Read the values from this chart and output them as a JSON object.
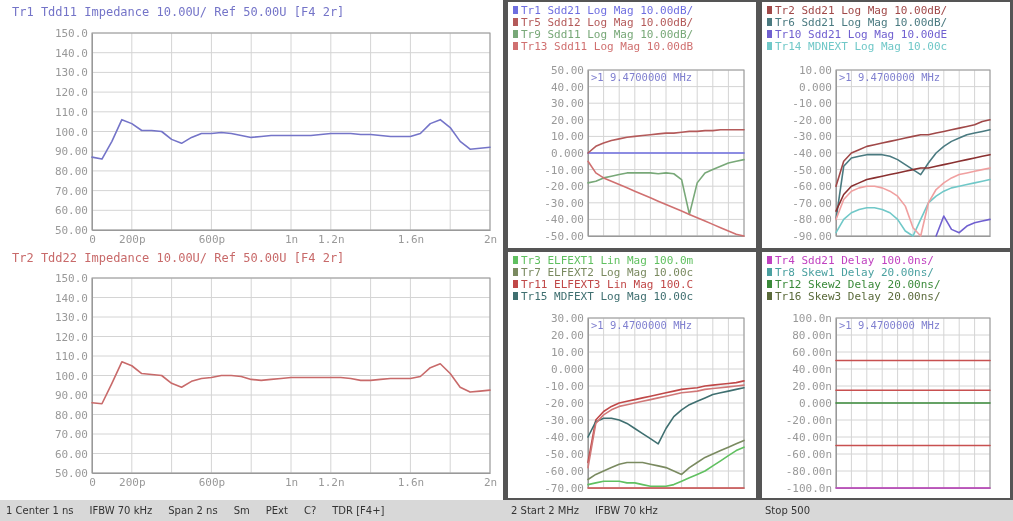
{
  "chart_data": [
    {
      "type": "line",
      "title": "Tr1 Tdd11 Impedance 10.00U/ Ref 50.00U [F4 2r]",
      "grid": true,
      "legend": false,
      "categories": [
        "0",
        null,
        null,
        null,
        "200p",
        null,
        null,
        null,
        null,
        null,
        null,
        null,
        "600p",
        null,
        null,
        null,
        null,
        null,
        null,
        null,
        "1n",
        null,
        null,
        null,
        "1.2n",
        null,
        null,
        null,
        null,
        null,
        null,
        null,
        "1.6n",
        null,
        null,
        null,
        null,
        null,
        null,
        null,
        "2n"
      ],
      "ylim": [
        50,
        150
      ],
      "yticks": [
        {
          "value": 50,
          "label": "50.00"
        },
        {
          "value": 60,
          "label": "60.00"
        },
        {
          "value": 70,
          "label": "70.00"
        },
        {
          "value": 80,
          "label": "80.00"
        },
        {
          "value": 90,
          "label": "90.00"
        },
        {
          "value": 100,
          "label": "100.0"
        },
        {
          "value": 110,
          "label": "110.0"
        },
        {
          "value": 120,
          "label": "120.0"
        },
        {
          "value": 130,
          "label": "130.0"
        },
        {
          "value": 140,
          "label": "140.0"
        },
        {
          "value": 150,
          "label": "150.0"
        }
      ],
      "series": [
        {
          "color": "#7474c8",
          "values": [
            87,
            86,
            95,
            106,
            104,
            100.5,
            100.5,
            100,
            96,
            94,
            97,
            99,
            99,
            99.5,
            99,
            98,
            97,
            97.5,
            98,
            98,
            98,
            98,
            98,
            98.5,
            99,
            99,
            99,
            98.5,
            98.5,
            98,
            97.5,
            97.5,
            97.5,
            99,
            104,
            106,
            102,
            95,
            91,
            91.5,
            92
          ]
        }
      ]
    },
    {
      "type": "line",
      "title": "Tr2 Tdd22 Impedance 10.00U/ Ref 50.00U [F4 2r]",
      "grid": true,
      "legend": false,
      "categories": [
        "0",
        null,
        null,
        null,
        "200p",
        null,
        null,
        null,
        null,
        null,
        null,
        null,
        "600p",
        null,
        null,
        null,
        null,
        null,
        null,
        null,
        "1n",
        null,
        null,
        null,
        "1.2n",
        null,
        null,
        null,
        null,
        null,
        null,
        null,
        "1.6n",
        null,
        null,
        null,
        null,
        null,
        null,
        null,
        "2n"
      ],
      "ylim": [
        50,
        150
      ],
      "yticks": [
        {
          "value": 50,
          "label": "50.00"
        },
        {
          "value": 60,
          "label": "60.00"
        },
        {
          "value": 70,
          "label": "70.00"
        },
        {
          "value": 80,
          "label": "80.00"
        },
        {
          "value": 90,
          "label": "90.00"
        },
        {
          "value": 100,
          "label": "100.0"
        },
        {
          "value": 110,
          "label": "110.0"
        },
        {
          "value": 120,
          "label": "120.0"
        },
        {
          "value": 130,
          "label": "130.0"
        },
        {
          "value": 140,
          "label": "140.0"
        },
        {
          "value": 150,
          "label": "150.0"
        }
      ],
      "annotations": [
        "1 Center 1 ns",
        "IFBW 70 kHz",
        "Span 2 ns",
        "Sm",
        "PExt",
        "C?",
        "TDR [F4+]"
      ],
      "series": [
        {
          "color": "#c86a6a",
          "values": [
            86,
            85.5,
            96,
            107,
            105,
            101,
            100.5,
            100,
            96,
            94,
            97,
            98.5,
            99,
            100,
            100,
            99.5,
            98,
            97.5,
            98,
            98.5,
            99,
            99,
            99,
            99,
            99,
            99,
            98.5,
            97.5,
            97.5,
            98,
            98.5,
            98.5,
            98.5,
            99.5,
            104,
            106,
            101,
            94,
            91.5,
            92,
            92.5
          ]
        }
      ]
    },
    {
      "type": "line",
      "grid": true,
      "legend": "top left",
      "tick_labels": "y",
      "categories": [
        null,
        null,
        null,
        null,
        null,
        null,
        null,
        null,
        null,
        null,
        null,
        null,
        null,
        null,
        null,
        null,
        null,
        null,
        null,
        null,
        null
      ],
      "ylim": [
        -50,
        50
      ],
      "yticks": [
        {
          "value": -50,
          "label": "-50.00"
        },
        {
          "value": -40,
          "label": "-40.00"
        },
        {
          "value": -30,
          "label": "-30.00"
        },
        {
          "value": -20,
          "label": "-20.00"
        },
        {
          "value": -10,
          "label": "-10.00"
        },
        {
          "value": 0,
          "label": "0.000"
        },
        {
          "value": 10,
          "label": "10.00"
        },
        {
          "value": 20,
          "label": "20.00"
        },
        {
          "value": 30,
          "label": "30.00"
        },
        {
          "value": 40,
          "label": "40.00"
        },
        {
          "value": 50,
          "label": "50.00"
        }
      ],
      "annotations": [
        ">1  9.4700000 MHz"
      ],
      "series": [
        {
          "name": "Tr1 Sdd21 Log Mag 10.00dB/",
          "color": "#6e6ee0",
          "values": [
            0,
            0,
            0,
            0,
            0,
            0,
            0,
            0,
            0,
            0,
            0,
            0,
            0,
            0,
            0,
            0,
            0,
            0,
            0,
            0,
            0
          ]
        },
        {
          "name": "Tr5 Sdd12 Log Mag 10.00dB/",
          "color": "#b45a5a",
          "values": [
            0,
            4,
            6,
            7.5,
            8.5,
            9.5,
            10,
            10.5,
            11,
            11.5,
            12,
            12,
            12.5,
            13,
            13,
            13.5,
            13.5,
            14,
            14,
            14,
            14
          ]
        },
        {
          "name": "Tr9 Sdd11 Log Mag 10.00dB/",
          "color": "#78a878",
          "values": [
            -18,
            -17,
            -15,
            -14,
            -13,
            -12,
            -12,
            -12,
            -12,
            -12.5,
            -12,
            -12.5,
            -16,
            -37,
            -18,
            -12,
            -10,
            -8,
            -6,
            -5,
            -4
          ]
        },
        {
          "name": "Tr13 Sdd11 Log Mag 10.00dB",
          "color": "#d07070",
          "values": [
            -5,
            -12,
            -15,
            -17,
            -19,
            -21,
            -23,
            -25,
            -27,
            -29,
            -31,
            -33,
            -35,
            -37,
            -39,
            -41,
            -43,
            -45,
            -47,
            -49,
            -50
          ]
        }
      ]
    },
    {
      "type": "line",
      "grid": true,
      "legend": "top left",
      "tick_labels": "y",
      "categories": [
        null,
        null,
        null,
        null,
        null,
        null,
        null,
        null,
        null,
        null,
        null,
        null,
        null,
        null,
        null,
        null,
        null,
        null,
        null,
        null,
        null
      ],
      "ylim": [
        -90,
        10
      ],
      "yticks": [
        {
          "value": -90,
          "label": "-90.00"
        },
        {
          "value": -80,
          "label": "-80.00"
        },
        {
          "value": -70,
          "label": "-70.00"
        },
        {
          "value": -60,
          "label": "-60.00"
        },
        {
          "value": -50,
          "label": "-50.00"
        },
        {
          "value": -40,
          "label": "-40.00"
        },
        {
          "value": -30,
          "label": "-30.00"
        },
        {
          "value": -20,
          "label": "-20.00"
        },
        {
          "value": -10,
          "label": "-10.00"
        },
        {
          "value": 0,
          "label": "0.000"
        },
        {
          "value": 10,
          "label": "10.00"
        }
      ],
      "annotations": [
        ">1  9.4700000 MHz"
      ],
      "series": [
        {
          "name": "Tr2 Sdd21 Log Mag 10.00dB/",
          "color": "#a04848",
          "values": [
            -60,
            -45,
            -40,
            -38,
            -36,
            -35,
            -34,
            -33,
            -32,
            -31,
            -30,
            -29,
            -29,
            -28,
            -27,
            -26,
            -25,
            -24,
            -23,
            -21,
            -20
          ]
        },
        {
          "name": "Tr6 Sdd21 Log Mag 10.00dB/",
          "color": "#4a7a80",
          "values": [
            -80,
            -48,
            -43,
            -42,
            -41,
            -41,
            -41,
            -42,
            -44,
            -47,
            -50,
            -53,
            -46,
            -40,
            -36,
            -33,
            -31,
            -29,
            -28,
            -27,
            -26
          ]
        },
        {
          "name": "Tr10 Sdd21 Log Mag 10.00dE",
          "color": "#7060d0",
          "values": [
            null,
            null,
            null,
            null,
            null,
            null,
            null,
            null,
            null,
            null,
            null,
            null,
            null,
            -90,
            -78,
            -86,
            -88,
            -84,
            -82,
            -81,
            -80
          ]
        },
        {
          "name": "Tr14 MDNEXT Log Mag 10.00c",
          "color": "#70c8c8",
          "values": [
            -88,
            -80,
            -76,
            -74,
            -73,
            -73,
            -74,
            -76,
            -80,
            -87,
            -90,
            -80,
            -70,
            -66,
            -63,
            -61,
            -60,
            -59,
            -58,
            -57,
            -56
          ]
        },
        {
          "color": "#8a3030",
          "values": [
            -75,
            -65,
            -60,
            -58,
            -56,
            -55,
            -54,
            -53,
            -52,
            -51,
            -50,
            -49,
            -49,
            -48,
            -47,
            -46,
            -45,
            -44,
            -43,
            -42,
            -41
          ]
        },
        {
          "color": "#f0a0a0",
          "values": [
            -80,
            -68,
            -63,
            -61,
            -60,
            -60,
            -61,
            -63,
            -66,
            -72,
            -85,
            -90,
            -70,
            -62,
            -58,
            -55,
            -53,
            -52,
            -51,
            -50,
            -49
          ]
        }
      ]
    },
    {
      "type": "line",
      "grid": true,
      "legend": "top left",
      "tick_labels": "y",
      "categories": [
        null,
        null,
        null,
        null,
        null,
        null,
        null,
        null,
        null,
        null,
        null,
        null,
        null,
        null,
        null,
        null,
        null,
        null,
        null,
        null,
        null
      ],
      "ylim": [
        -70,
        30
      ],
      "yticks": [
        {
          "value": -70,
          "label": "-70.00"
        },
        {
          "value": -60,
          "label": "-60.00"
        },
        {
          "value": -50,
          "label": "-50.00"
        },
        {
          "value": -40,
          "label": "-40.00"
        },
        {
          "value": -30,
          "label": "-30.00"
        },
        {
          "value": -20,
          "label": "-20.00"
        },
        {
          "value": -10,
          "label": "-10.00"
        },
        {
          "value": 0,
          "label": "0.000"
        },
        {
          "value": 10,
          "label": "10.00"
        },
        {
          "value": 20,
          "label": "20.00"
        },
        {
          "value": 30,
          "label": "30.00"
        }
      ],
      "annotations": [
        ">1  9.4700000 MHz",
        "2 Start 2 MHz",
        "IFBW 70 kHz"
      ],
      "series": [
        {
          "name": "Tr3 ELFEXT1 Lin Mag 100.0m",
          "color": "#60c060",
          "values": [
            -68,
            -67,
            -66,
            -66,
            -66,
            -67,
            -67,
            -68,
            -69,
            -69,
            -69,
            -68,
            -66,
            -64,
            -62,
            -60,
            -57,
            -54,
            -51,
            -48,
            -46
          ]
        },
        {
          "name": "Tr7 ELFEXT2 Log Mag 10.00c",
          "color": "#7a8a60",
          "values": [
            -65,
            -62,
            -60,
            -58,
            -56,
            -55,
            -55,
            -55,
            -56,
            -57,
            -58,
            -60,
            -62,
            -58,
            -55,
            -52,
            -50,
            -48,
            -46,
            -44,
            -42
          ]
        },
        {
          "name": "Tr11 ELFEXT3 Lin Mag 100.C",
          "color": "#c04848",
          "values": [
            -55,
            -30,
            -25,
            -22,
            -20,
            -19,
            -18,
            -17,
            -16,
            -15,
            -14,
            -13,
            -12,
            -11.5,
            -11,
            -10,
            -9.5,
            -9,
            -8.5,
            -8,
            -7
          ]
        },
        {
          "name": "Tr15 MDFEXT Log Mag 10.00c",
          "color": "#3f6f70",
          "values": [
            -40,
            -31,
            -29,
            -29,
            -30,
            -32,
            -35,
            -38,
            -41,
            -44,
            -35,
            -28,
            -24,
            -21,
            -19,
            -17,
            -15,
            -14,
            -13,
            -12,
            -11
          ]
        },
        {
          "color": "#d07878",
          "values": [
            -58,
            -32,
            -27,
            -24,
            -22,
            -21,
            -20,
            -19,
            -18,
            -17,
            -16,
            -15,
            -14,
            -13.5,
            -13,
            -12,
            -11.5,
            -11,
            -10.5,
            -10,
            -9.5
          ]
        },
        {
          "color": "#d85858",
          "values": [
            -70,
            -70,
            -70,
            -70,
            -70,
            -70,
            -70,
            -70,
            -70,
            -70,
            -70,
            -70,
            -70,
            -70,
            -70,
            -70,
            -70,
            -70,
            -70,
            -70,
            -70
          ]
        }
      ]
    },
    {
      "type": "line",
      "grid": true,
      "legend": "top left",
      "tick_labels": "y",
      "categories": [
        null,
        null,
        null,
        null,
        null,
        null,
        null,
        null,
        null,
        null,
        null,
        null,
        null,
        null,
        null,
        null,
        null,
        null,
        null,
        null,
        null
      ],
      "ylim": [
        -100,
        100
      ],
      "yticks": [
        {
          "value": -100,
          "label": "-100.0n"
        },
        {
          "value": -80,
          "label": "-80.00n"
        },
        {
          "value": -60,
          "label": "-60.00n"
        },
        {
          "value": -40,
          "label": "-40.00n"
        },
        {
          "value": -20,
          "label": "-20.00n"
        },
        {
          "value": 0,
          "label": "0.000"
        },
        {
          "value": 20,
          "label": "20.00n"
        },
        {
          "value": 40,
          "label": "40.00n"
        },
        {
          "value": 60,
          "label": "60.00n"
        },
        {
          "value": 80,
          "label": "80.00n"
        },
        {
          "value": 100,
          "label": "100.0n"
        }
      ],
      "annotations": [
        ">1  9.4700000 MHz",
        "Stop 500"
      ],
      "series": [
        {
          "name": "Tr4 Sdd21 Delay 100.0ns/",
          "color": "#c040c0",
          "values": [
            -100,
            -100,
            -100,
            -100,
            -100,
            -100,
            -100,
            -100,
            -100,
            -100,
            -100,
            -100,
            -100,
            -100,
            -100,
            -100,
            -100,
            -100,
            -100,
            -100,
            -100
          ]
        },
        {
          "name": "Tr8 Skew1 Delay 20.00ns/",
          "color": "#4aa0a0",
          "values": [
            null,
            null,
            null,
            null,
            null,
            null,
            null,
            null,
            null,
            null,
            null,
            null,
            null,
            null,
            null,
            null,
            null,
            null,
            null,
            null,
            null
          ]
        },
        {
          "name": "Tr12 Skew2 Delay 20.00ns/",
          "color": "#3a8a3a",
          "values": [
            0,
            0,
            0,
            0,
            0,
            0,
            0,
            0,
            0,
            0,
            0,
            0,
            0,
            0,
            0,
            0,
            0,
            0,
            0,
            0,
            0
          ]
        },
        {
          "name": "Tr16 Skew3 Delay 20.00ns/",
          "color": "#5a6a3a",
          "values": [
            null,
            null,
            null,
            null,
            null,
            null,
            null,
            null,
            null,
            null,
            null,
            null,
            null,
            null,
            null,
            null,
            null,
            null,
            null,
            null,
            null
          ]
        },
        {
          "color": "#c85050",
          "values": [
            50,
            50,
            50,
            50,
            50,
            50,
            50,
            50,
            50,
            50,
            50,
            50,
            50,
            50,
            50,
            50,
            50,
            50,
            50,
            50,
            50
          ]
        },
        {
          "color": "#c85050",
          "values": [
            15,
            15,
            15,
            15,
            15,
            15,
            15,
            15,
            15,
            15,
            15,
            15,
            15,
            15,
            15,
            15,
            15,
            15,
            15,
            15,
            15
          ]
        },
        {
          "color": "#c85050",
          "values": [
            -50,
            -50,
            -50,
            -50,
            -50,
            -50,
            -50,
            -50,
            -50,
            -50,
            -50,
            -50,
            -50,
            -50,
            -50,
            -50,
            -50,
            -50,
            -50,
            -50,
            -50
          ]
        }
      ]
    }
  ]
}
